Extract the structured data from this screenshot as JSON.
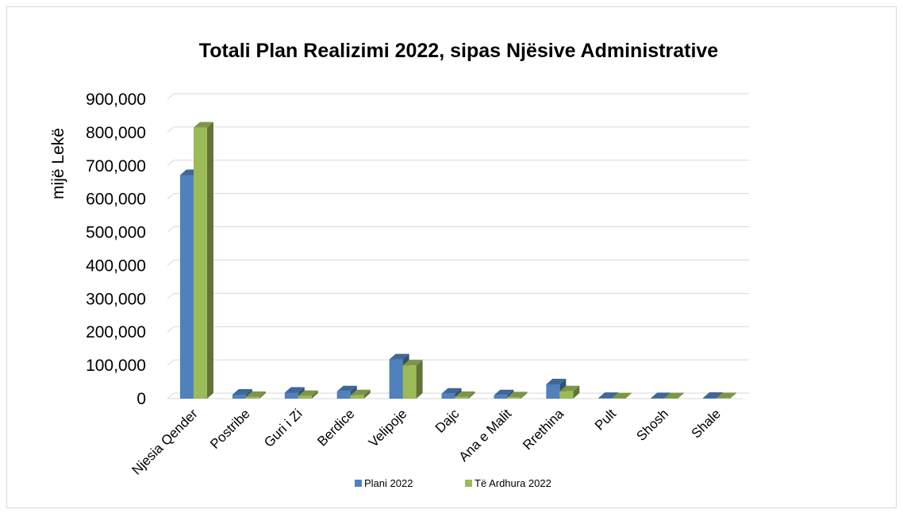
{
  "chart_data": {
    "type": "bar",
    "title": "Totali Plan Realizimi 2022, sipas Njësive Administrative",
    "xlabel": "",
    "ylabel": "mijë Lekë",
    "ylim": [
      0,
      900000
    ],
    "yticks": [
      0,
      100000,
      200000,
      300000,
      400000,
      500000,
      600000,
      700000,
      800000,
      900000
    ],
    "ytick_labels": [
      "0",
      "100,000",
      "200,000",
      "300,000",
      "400,000",
      "500,000",
      "600,000",
      "700,000",
      "800,000",
      "900,000"
    ],
    "grid": true,
    "legend_position": "bottom",
    "categories": [
      "Njesia Qender",
      "Postribe",
      "Guri i Zi",
      "Berdice",
      "Velipoje",
      "Dajc",
      "Ana e Malit",
      "Rrethina",
      "Pult",
      "Shosh",
      "Shale"
    ],
    "series": [
      {
        "name": "Plani 2022",
        "color": "#4f81bd",
        "values": [
          672000,
          12000,
          18000,
          22000,
          118000,
          15000,
          10000,
          43000,
          2000,
          1500,
          2500
        ]
      },
      {
        "name": "Të Ardhura 2022",
        "color": "#9bbb59",
        "values": [
          815000,
          5000,
          8000,
          10000,
          100000,
          5000,
          4000,
          22000,
          1000,
          1200,
          1500
        ]
      }
    ]
  }
}
